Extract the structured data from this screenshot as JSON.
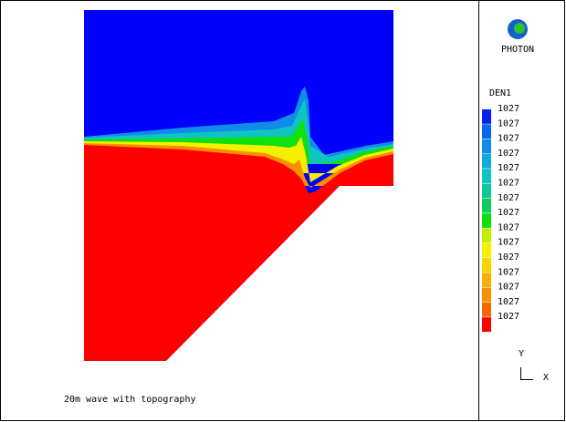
{
  "header": {
    "title": "PHOTON"
  },
  "legend": {
    "variable": "DEN1",
    "items": [
      {
        "label": 1027,
        "color": "#0022ee"
      },
      {
        "label": 1027,
        "color": "#0a66ee"
      },
      {
        "label": 1027,
        "color": "#108ce8"
      },
      {
        "label": 1027,
        "color": "#10acde"
      },
      {
        "label": 1027,
        "color": "#10c4c4"
      },
      {
        "label": 1027,
        "color": "#10c896"
      },
      {
        "label": 1027,
        "color": "#10cc60"
      },
      {
        "label": 1027,
        "color": "#10e010"
      },
      {
        "label": 1027,
        "color": "#c0f000"
      },
      {
        "label": 1027,
        "color": "#f4f000"
      },
      {
        "label": 1027,
        "color": "#f8d400"
      },
      {
        "label": 1027,
        "color": "#f8b000"
      },
      {
        "label": 1027,
        "color": "#f89000"
      },
      {
        "label": 1027,
        "color": "#f86800"
      },
      {
        "label": 1027,
        "color": "#ff0000"
      }
    ]
  },
  "caption": "20m wave with topography",
  "axes": {
    "y": "Y",
    "x": "X"
  }
}
